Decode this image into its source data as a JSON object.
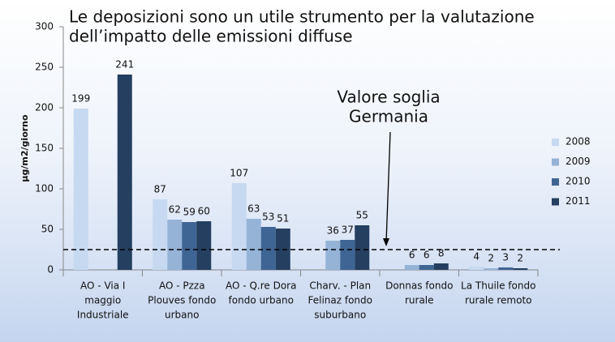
{
  "chart_data": {
    "type": "bar",
    "title": [
      "Le deposizioni sono un utile strumento per la valutazione",
      "dell’impatto delle emissioni diffuse"
    ],
    "ylabel": "µg/m2/giorno",
    "categories": [
      [
        "AO - Via I",
        "maggio",
        "Industriale"
      ],
      [
        "AO - Pzza",
        "Plouves fondo",
        "urbano"
      ],
      [
        "AO - Q.re Dora",
        "fondo urbano"
      ],
      [
        "Charv. - Plan",
        "Felinaz fondo",
        "suburbano"
      ],
      [
        "Donnas fondo",
        "rurale"
      ],
      [
        "La Thuile fondo",
        "rurale remoto"
      ]
    ],
    "series": [
      {
        "name": "2008",
        "color": "#c6d9f1",
        "values": [
          199,
          87,
          107,
          null,
          null,
          4
        ]
      },
      {
        "name": "2009",
        "color": "#95b3d7",
        "values": [
          null,
          62,
          63,
          36,
          6,
          2
        ]
      },
      {
        "name": "2010",
        "color": "#3f6594",
        "values": [
          null,
          59,
          53,
          37,
          6,
          3
        ]
      },
      {
        "name": "2011",
        "color": "#243f60",
        "values": [
          241,
          60,
          51,
          55,
          8,
          2
        ]
      }
    ],
    "ylim": [
      0,
      300
    ],
    "yticks": [
      0,
      50,
      100,
      150,
      200,
      250,
      300
    ],
    "threshold": 25,
    "annotation": [
      "Valore soglia",
      "Germania"
    ],
    "legend": "right"
  }
}
